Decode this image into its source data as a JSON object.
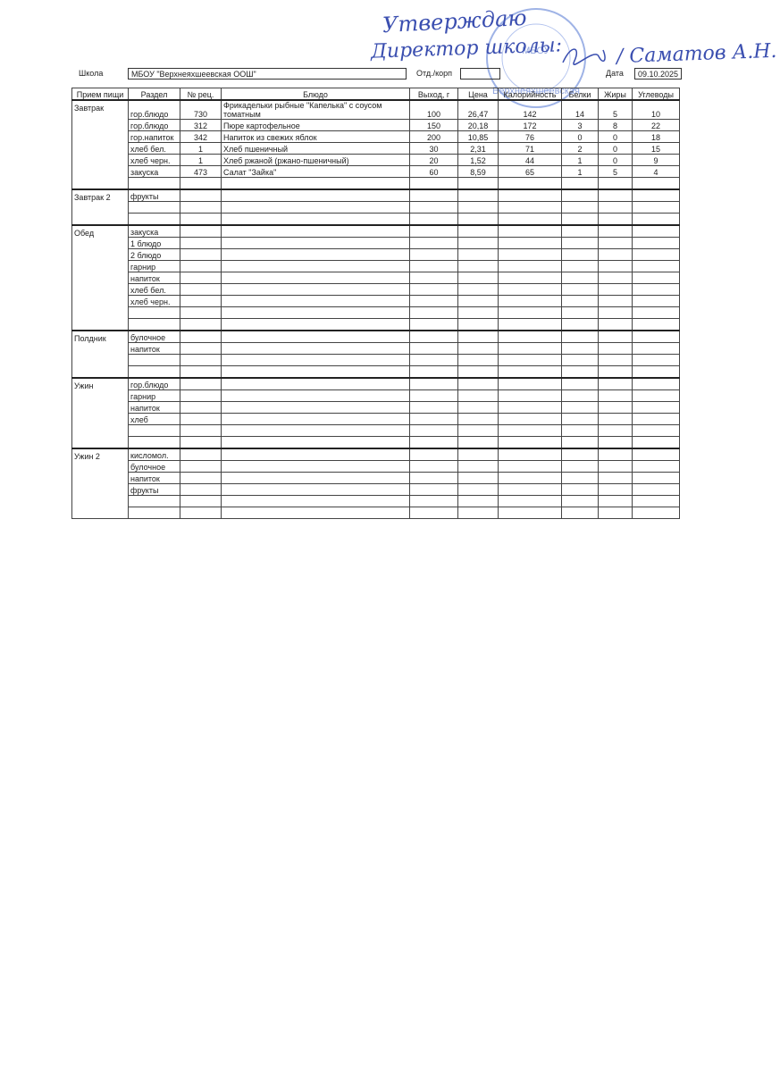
{
  "approval": {
    "line1": "Утверждаю",
    "line2": "Директор школы:",
    "signer": "/ Саматов А.Н."
  },
  "stamp": {
    "org": "МБОУ",
    "name": "Верхнеяхшеевская"
  },
  "header": {
    "school_label": "Школа",
    "school": "МБОУ \"Верхнеяхшеевская ООШ\"",
    "dept_label": "Отд./корп",
    "date_label": "Дата",
    "date": "09.10.2025"
  },
  "table": {
    "columns": [
      "Прием пищи",
      "Раздел",
      "№ рец.",
      "Блюдо",
      "Выход, г",
      "Цена",
      "Калорийность",
      "Белки",
      "Жиры",
      "Углеводы"
    ],
    "groups": [
      {
        "meal": "Завтрак",
        "rows": [
          {
            "section": "гор.блюдо",
            "recipe": "730",
            "dish": "Фрикадельки рыбные \"Капелька\" с соусом томатным",
            "yield": "100",
            "price": "26,47",
            "kcal": "142",
            "protein": "14",
            "fat": "5",
            "carbs": "10"
          },
          {
            "section": "гор.блюдо",
            "recipe": "312",
            "dish": "Пюре картофельное",
            "yield": "150",
            "price": "20,18",
            "kcal": "172",
            "protein": "3",
            "fat": "8",
            "carbs": "22"
          },
          {
            "section": "гор.напиток",
            "recipe": "342",
            "dish": "Напиток из свежих яблок",
            "yield": "200",
            "price": "10,85",
            "kcal": "76",
            "protein": "0",
            "fat": "0",
            "carbs": "18"
          },
          {
            "section": "хлеб бел.",
            "recipe": "1",
            "dish": "Хлеб пшеничный",
            "yield": "30",
            "price": "2,31",
            "kcal": "71",
            "protein": "2",
            "fat": "0",
            "carbs": "15"
          },
          {
            "section": "хлеб черн.",
            "recipe": "1",
            "dish": "Хлеб ржаной (ржано-пшеничный)",
            "yield": "20",
            "price": "1,52",
            "kcal": "44",
            "protein": "1",
            "fat": "0",
            "carbs": "9"
          },
          {
            "section": "закуска",
            "recipe": "473",
            "dish": "Салат \"Зайка\"",
            "yield": "60",
            "price": "8,59",
            "kcal": "65",
            "protein": "1",
            "fat": "5",
            "carbs": "4"
          }
        ]
      },
      {
        "meal": "Завтрак 2",
        "rows": [
          {
            "section": "фрукты"
          }
        ]
      },
      {
        "meal": "Обед",
        "rows": [
          {
            "section": "закуска"
          },
          {
            "section": "1 блюдо"
          },
          {
            "section": "2 блюдо"
          },
          {
            "section": "гарнир"
          },
          {
            "section": "напиток"
          },
          {
            "section": "хлеб бел."
          },
          {
            "section": "хлеб черн."
          }
        ]
      },
      {
        "meal": "Полдник",
        "rows": [
          {
            "section": "булочное"
          },
          {
            "section": "напиток"
          }
        ]
      },
      {
        "meal": "Ужин",
        "rows": [
          {
            "section": "гор.блюдо"
          },
          {
            "section": "гарнир"
          },
          {
            "section": "напиток"
          },
          {
            "section": "хлеб"
          }
        ]
      },
      {
        "meal": "Ужин 2",
        "rows": [
          {
            "section": "кисломол."
          },
          {
            "section": "булочное"
          },
          {
            "section": "напиток"
          },
          {
            "section": "фрукты"
          }
        ]
      }
    ]
  }
}
